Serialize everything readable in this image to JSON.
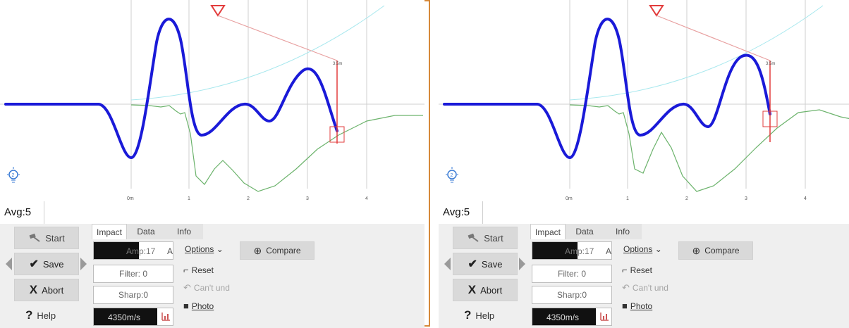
{
  "left": {
    "avg_label": "Avg:5",
    "scale_marker": "3.5m",
    "x_ticks": [
      "0m",
      "1",
      "2",
      "3",
      "4"
    ],
    "buttons": {
      "start": "Start",
      "save": "Save",
      "abort": "Abort",
      "help": "Help"
    },
    "tabs": [
      "Impact",
      "Data",
      "Info"
    ],
    "amp": {
      "label": "Amp:17",
      "unit": "A"
    },
    "filter": "Filter: 0",
    "sharp": "Sharp:0",
    "velocity": "4350m/s",
    "options": "Options",
    "compare": "Compare",
    "reset": "Reset",
    "undo": "Can't und",
    "photo": "Photo"
  },
  "right": {
    "avg_label": "Avg:5",
    "scale_marker": "3.5m",
    "x_ticks": [
      "0m",
      "1",
      "2",
      "3",
      "4"
    ],
    "buttons": {
      "start": "Start",
      "save": "Save",
      "abort": "Abort",
      "help": "Help"
    },
    "tabs": [
      "Impact",
      "Data",
      "Info"
    ],
    "amp": {
      "label": "Amp:17",
      "unit": "A"
    },
    "filter": "Filter: 0",
    "sharp": "Sharp:0",
    "velocity": "4350m/s",
    "options": "Options",
    "compare": "Compare",
    "reset": "Reset",
    "undo": "Can't und",
    "photo": "Photo"
  },
  "colors": {
    "main_trace": "#1a1ad8",
    "green_trace": "#6cb36c",
    "cyan_trace": "#a8e8ee",
    "marker_red": "#e23c3c",
    "frame_orange": "#d6893a"
  },
  "icons": [
    "hammer-icon",
    "check-icon",
    "x-icon",
    "question-icon",
    "bulb-icon",
    "magnifier-icon",
    "broom-icon",
    "undo-icon",
    "camera-icon",
    "chart-icon",
    "chevron-down-icon"
  ]
}
